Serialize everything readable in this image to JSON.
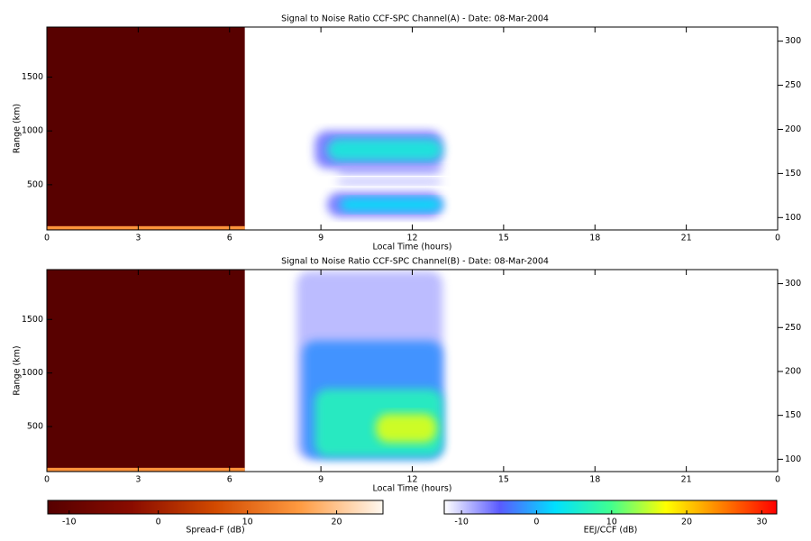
{
  "chart_data": [
    {
      "type": "heatmap",
      "title": "Signal to Noise Ratio CCF-SPC Channel(A) - Date: 08-Mar-2004",
      "xlabel": "Local Time (hours)",
      "ylabel": "Range (km)",
      "xlim": [
        0,
        24
      ],
      "xticks": [
        0,
        3,
        6,
        9,
        12,
        15,
        18,
        21,
        {
          "value": 24,
          "label": "0"
        }
      ],
      "ylim": [
        80,
        1965
      ],
      "yticks": [
        500,
        1000,
        1500
      ],
      "y2lim": [
        86,
        316
      ],
      "y2ticks": [
        100,
        150,
        200,
        250,
        300
      ],
      "regions": [
        {
          "x": [
            0,
            6.5
          ],
          "y": [
            80,
            1965
          ],
          "value": -12,
          "colorbar": 0
        },
        {
          "x": [
            0,
            6.5
          ],
          "y": [
            85,
            115
          ],
          "value": 15,
          "colorbar": 0
        },
        {
          "x": [
            8.8,
            13
          ],
          "y": [
            650,
            1000
          ],
          "value": -6,
          "colorbar": 1
        },
        {
          "x": [
            9.2,
            13
          ],
          "y": [
            720,
            930
          ],
          "value": 5,
          "colorbar": 1
        },
        {
          "x": [
            9.5,
            13
          ],
          "y": [
            600,
            680
          ],
          "value": -8,
          "colorbar": 1
        },
        {
          "x": [
            9.5,
            13
          ],
          "y": [
            500,
            560
          ],
          "value": -9,
          "colorbar": 1
        },
        {
          "x": [
            9.2,
            13
          ],
          "y": [
            200,
            430
          ],
          "value": -6,
          "colorbar": 1
        },
        {
          "x": [
            9.6,
            13
          ],
          "y": [
            250,
            380
          ],
          "value": 3,
          "colorbar": 1
        }
      ]
    },
    {
      "type": "heatmap",
      "title": "Signal to Noise Ratio CCF-SPC Channel(B) - Date: 08-Mar-2004",
      "xlabel": "Local Time (hours)",
      "ylabel": "Range (km)",
      "xlim": [
        0,
        24
      ],
      "xticks": [
        0,
        3,
        6,
        9,
        12,
        15,
        18,
        21,
        {
          "value": 24,
          "label": "0"
        }
      ],
      "ylim": [
        80,
        1965
      ],
      "yticks": [
        500,
        1000,
        1500
      ],
      "y2lim": [
        86,
        316
      ],
      "y2ticks": [
        100,
        150,
        200,
        250,
        300
      ],
      "regions": [
        {
          "x": [
            0,
            6.5
          ],
          "y": [
            80,
            1965
          ],
          "value": -12,
          "colorbar": 0
        },
        {
          "x": [
            0,
            6.5
          ],
          "y": [
            85,
            115
          ],
          "value": 15,
          "colorbar": 0
        },
        {
          "x": [
            8.2,
            13
          ],
          "y": [
            200,
            1950
          ],
          "value": -9,
          "colorbar": 1
        },
        {
          "x": [
            8.4,
            13
          ],
          "y": [
            200,
            1300
          ],
          "value": -2,
          "colorbar": 1
        },
        {
          "x": [
            8.8,
            13
          ],
          "y": [
            220,
            850
          ],
          "value": 7,
          "colorbar": 1
        },
        {
          "x": [
            10.8,
            12.8
          ],
          "y": [
            350,
            620
          ],
          "value": 16,
          "colorbar": 1
        }
      ]
    },
    {
      "type": "colorbar",
      "label": "Spread-F (dB)",
      "xlim": [
        -12.4,
        25.2
      ],
      "xticks": [
        -10,
        0,
        10,
        20
      ],
      "colors": [
        "#560000",
        "#8a0c00",
        "#d24a00",
        "#ff9a40",
        "#fff8f0"
      ]
    },
    {
      "type": "colorbar",
      "label": "EEJ/CCF (dB)",
      "xlim": [
        -12.3,
        32
      ],
      "xticks": [
        -10,
        0,
        10,
        20,
        30
      ],
      "colors": [
        "#ffffff",
        "#5a5aff",
        "#00e0ff",
        "#40ff90",
        "#ffff00",
        "#ff8000",
        "#ff0000"
      ]
    }
  ]
}
